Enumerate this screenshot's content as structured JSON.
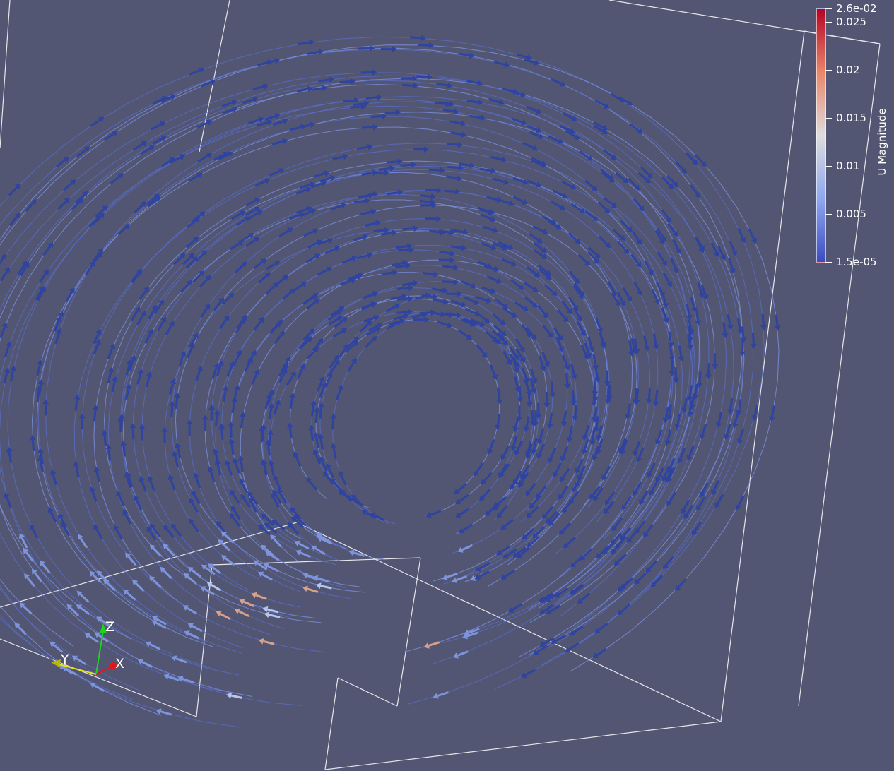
{
  "colorbar": {
    "title": "U Magnitude",
    "ticks": [
      "2.6e-02",
      "0.025",
      "0.02",
      "0.015",
      "0.01",
      "0.005",
      "1.5e-05"
    ],
    "tick_values": [
      0.026,
      0.025,
      0.02,
      0.015,
      0.01,
      0.005,
      1.5e-05
    ],
    "range": [
      1.5e-05,
      0.026
    ],
    "colors": {
      "low": "#3b4cc0",
      "mid": "#dddddd",
      "high": "#b40426"
    }
  },
  "orientation_axes": {
    "x": "X",
    "y": "Y",
    "z": "Z"
  },
  "colors": {
    "background": "#525672",
    "outline": "#ffffff",
    "streamline": "#6a80d8",
    "glyph": "#3347a6"
  }
}
